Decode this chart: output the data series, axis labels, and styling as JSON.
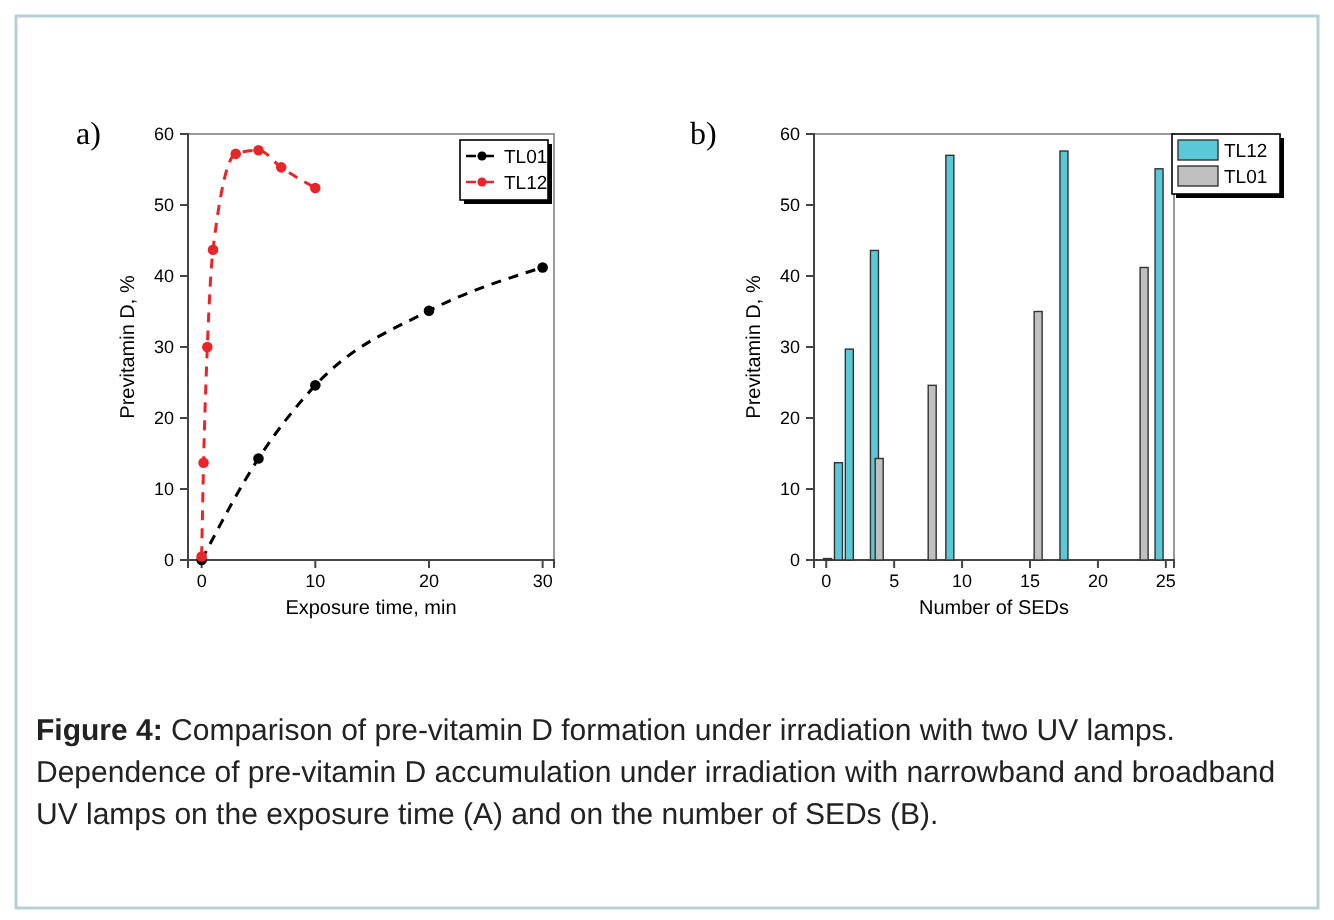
{
  "chart_data": [
    {
      "type": "line",
      "xlabel": "Exposure time, min",
      "ylabel": "Previtamin D, %",
      "annotations": [
        "a)",
        "Figure 4: Comparison of pre-vitamin D formation under irradiation with two UV lamps. Dependence of pre-vitamin D accumulation under irradiation with narrowband and broadband UV lamps on the exposure time (A) and on the number of SEDs (B)."
      ],
      "xlim": [
        -1.2,
        31
      ],
      "xticks": [
        0,
        10,
        20,
        30
      ],
      "ylim": [
        0,
        60
      ],
      "yticks": [
        0,
        10,
        20,
        30,
        40,
        50,
        60
      ],
      "grid": false,
      "legend": "top right",
      "marker": "circle",
      "line_style": "dashed",
      "series": [
        {
          "name": "TL01",
          "color": "#000000",
          "x": [
            0,
            5,
            10,
            20,
            30
          ],
          "values": [
            0,
            14.3,
            24.6,
            35.1,
            41.2
          ]
        },
        {
          "name": "TL12",
          "color": "#e8262a",
          "x": [
            0,
            0.17,
            0.5,
            1,
            3,
            5,
            7,
            10
          ],
          "values": [
            0.5,
            13.7,
            30,
            43.7,
            57.2,
            57.7,
            55.3,
            52.4
          ]
        }
      ]
    },
    {
      "type": "bar",
      "xlabel": "Number of SEDs",
      "ylabel": "Previtamin D, %",
      "annotations": [
        "b)"
      ],
      "xlim": [
        -0.9,
        25.6
      ],
      "xticks": [
        0,
        5,
        10,
        15,
        20,
        25
      ],
      "ylim": [
        0,
        60
      ],
      "yticks": [
        0,
        10,
        20,
        30,
        40,
        50,
        60
      ],
      "grid": false,
      "legend": "top right",
      "series": [
        {
          "name": "TL12",
          "color": "#5bc8d8",
          "x": [
            0.9,
            1.7,
            3.55,
            9.1,
            17.5,
            24.5
          ],
          "values": [
            13.7,
            29.7,
            43.6,
            57,
            57.6,
            55.1
          ]
        },
        {
          "name": "TL01",
          "color": "#c0c0c0",
          "x": [
            0.1,
            3.9,
            7.8,
            15.6,
            23.4
          ],
          "values": [
            0.2,
            14.3,
            24.6,
            35,
            41.2
          ]
        }
      ]
    }
  ]
}
